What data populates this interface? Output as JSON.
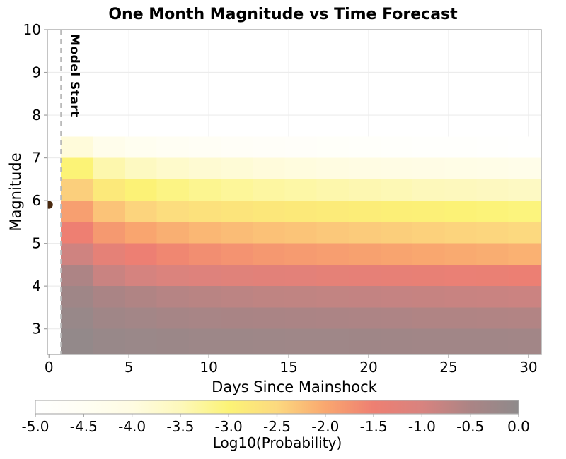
{
  "chart_data": {
    "type": "heatmap",
    "title": "One Month Magnitude vs Time Forecast",
    "xlabel": "Days Since Mainshock",
    "ylabel": "Magnitude",
    "colorbar_label": "Log10(Probability)",
    "xlim": [
      -0.1,
      30.8
    ],
    "ylim": [
      2.4,
      10
    ],
    "grid": true,
    "x_ticks": [
      0,
      5,
      10,
      15,
      20,
      25,
      30
    ],
    "y_ticks": [
      3,
      4,
      5,
      6,
      7,
      8,
      9,
      10
    ],
    "x_bin_edges_days": [
      0.75,
      2.75,
      4.75,
      6.75,
      8.75,
      10.75,
      12.75,
      14.75,
      16.75,
      18.75,
      20.75,
      22.75,
      24.75,
      26.75,
      28.75,
      30.75
    ],
    "y_bin_edges_magnitude": [
      7.5,
      7.0,
      6.5,
      6.0,
      5.5,
      5.0,
      4.5,
      4.0,
      3.5,
      3.0,
      2.5
    ],
    "log10_probability": [
      [
        -3.9,
        -4.25,
        -4.4,
        -4.51,
        -4.59,
        -4.65,
        -4.69,
        -4.73,
        -4.77,
        -4.8,
        -4.83,
        -4.86,
        -4.89,
        -4.92,
        -4.95
      ],
      [
        -3.0,
        -3.4,
        -3.58,
        -3.7,
        -3.79,
        -3.85,
        -3.91,
        -3.95,
        -3.99,
        -4.03,
        -4.06,
        -4.1,
        -4.13,
        -4.16,
        -4.2
      ],
      [
        -2.4,
        -2.8,
        -2.98,
        -3.1,
        -3.19,
        -3.25,
        -3.31,
        -3.35,
        -3.39,
        -3.43,
        -3.46,
        -3.5,
        -3.53,
        -3.56,
        -3.6
      ],
      [
        -1.9,
        -2.28,
        -2.45,
        -2.57,
        -2.65,
        -2.72,
        -2.77,
        -2.81,
        -2.85,
        -2.88,
        -2.92,
        -2.95,
        -2.99,
        -3.02,
        -3.05
      ],
      [
        -1.5,
        -1.83,
        -1.98,
        -2.08,
        -2.16,
        -2.21,
        -2.26,
        -2.29,
        -2.33,
        -2.36,
        -2.39,
        -2.42,
        -2.45,
        -2.47,
        -2.5
      ],
      [
        -0.9,
        -1.3,
        -1.48,
        -1.6,
        -1.69,
        -1.75,
        -1.81,
        -1.85,
        -1.89,
        -1.93,
        -1.96,
        -2.0,
        -2.03,
        -2.06,
        -2.1
      ],
      [
        -0.52,
        -0.83,
        -0.97,
        -1.06,
        -1.13,
        -1.18,
        -1.22,
        -1.25,
        -1.29,
        -1.32,
        -1.34,
        -1.37,
        -1.4,
        -1.42,
        -1.45
      ],
      [
        -0.3,
        -0.48,
        -0.56,
        -0.62,
        -0.66,
        -0.69,
        -0.72,
        -0.73,
        -0.75,
        -0.77,
        -0.79,
        -0.8,
        -0.82,
        -0.83,
        -0.85
      ],
      [
        -0.18,
        -0.31,
        -0.37,
        -0.41,
        -0.44,
        -0.46,
        -0.48,
        -0.5,
        -0.51,
        -0.52,
        -0.53,
        -0.55,
        -0.56,
        -0.57,
        -0.58
      ],
      [
        -0.08,
        -0.17,
        -0.2,
        -0.23,
        -0.25,
        -0.26,
        -0.28,
        -0.29,
        -0.29,
        -0.3,
        -0.31,
        -0.32,
        -0.33,
        -0.33,
        -0.34
      ]
    ],
    "colormap_stops": [
      {
        "value": -5.0,
        "color": "#ffffff"
      },
      {
        "value": -4.5,
        "color": "#fffef3"
      },
      {
        "value": -4.0,
        "color": "#fffce2"
      },
      {
        "value": -3.5,
        "color": "#fdf8bb"
      },
      {
        "value": -3.0,
        "color": "#fcf376"
      },
      {
        "value": -2.5,
        "color": "#fcd97f"
      },
      {
        "value": -2.0,
        "color": "#f9a76f"
      },
      {
        "value": -1.5,
        "color": "#ee7f72"
      },
      {
        "value": -1.0,
        "color": "#d8837f"
      },
      {
        "value": -0.5,
        "color": "#ab8485"
      },
      {
        "value": 0.0,
        "color": "#8e8a8b"
      }
    ],
    "colorbar_tick_labels": [
      "-5.0",
      "-4.5",
      "-4.0",
      "-3.5",
      "-3.0",
      "-2.5",
      "-2.0",
      "-1.5",
      "-1.0",
      "-0.5",
      "0.0"
    ],
    "colorbar_range": [
      -5.0,
      0.0
    ],
    "legend_position": "bottom",
    "annotations": {
      "model_start_line": {
        "x_days": 0.75,
        "label": "Model Start",
        "style": "dashed",
        "color": "#b8b8b8"
      },
      "mainshock_marker": {
        "x_days": 0,
        "magnitude": 5.9,
        "color": "#4a2a10"
      }
    }
  },
  "colors": {
    "background": "#ffffff",
    "spine": "#b0b0b0",
    "gridline": "#ececec",
    "tick": "#a0a0a0",
    "text": "#000000"
  }
}
